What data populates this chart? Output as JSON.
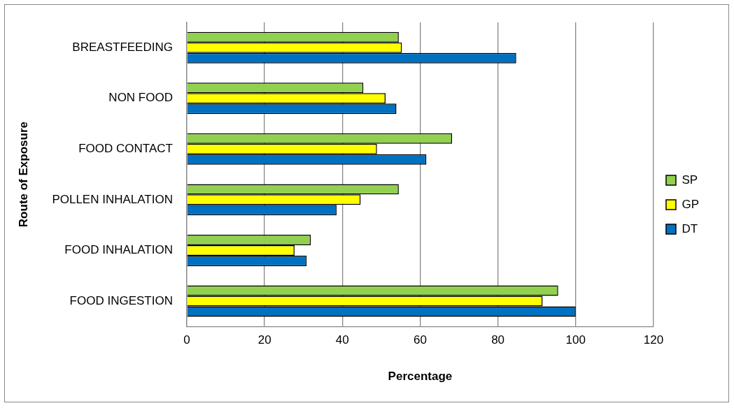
{
  "chart_data": {
    "type": "bar",
    "orientation": "horizontal",
    "xlabel": "Percentage",
    "ylabel": "Route of Exposure",
    "categories": [
      "BREASTFEEDING",
      "NON FOOD",
      "FOOD CONTACT",
      "POLLEN INHALATION",
      "FOOD INHALATION",
      "FOOD INGESTION"
    ],
    "series": [
      {
        "name": "SP",
        "color": "#92d050",
        "values": [
          54.5,
          45.4,
          68.2,
          54.5,
          31.9,
          95.5
        ]
      },
      {
        "name": "GP",
        "color": "#ffff00",
        "values": [
          55.3,
          51.1,
          48.9,
          44.7,
          27.7,
          91.5
        ]
      },
      {
        "name": "DT",
        "color": "#0070c0",
        "values": [
          84.7,
          53.9,
          61.6,
          38.5,
          30.8,
          100
        ]
      }
    ],
    "xlim": [
      0,
      120
    ],
    "xticks": [
      0,
      20,
      40,
      60,
      80,
      100,
      120
    ],
    "grid": "x",
    "legend": "right"
  }
}
